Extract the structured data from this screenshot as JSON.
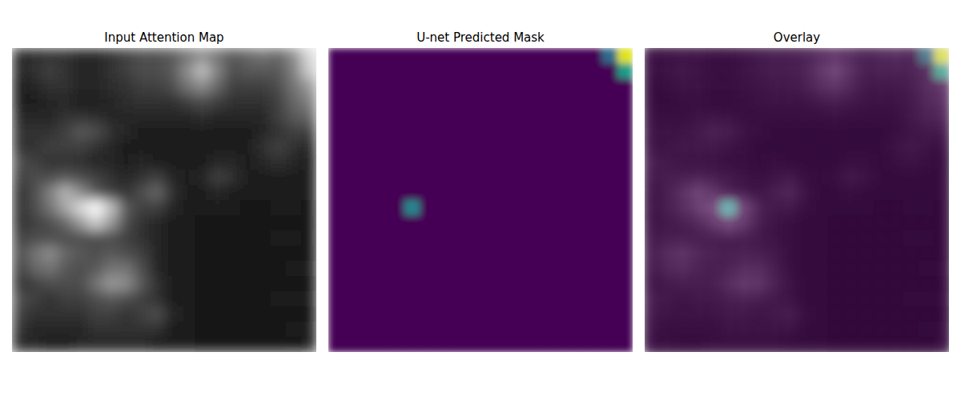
{
  "chart_data": [
    {
      "type": "heatmap",
      "title": "Input Attention Map",
      "color": "gray",
      "color_range": [
        0,
        1
      ],
      "tick_labels": false,
      "cells": [
        [
          0.15,
          0.18,
          0.2,
          0.2,
          0.15,
          0.15,
          0.2,
          0.25,
          0.3,
          0.3,
          0.35,
          0.45,
          0.55,
          0.45,
          0.35,
          0.4,
          0.45,
          0.4,
          0.55,
          0.85
        ],
        [
          0.15,
          0.2,
          0.25,
          0.2,
          0.15,
          0.15,
          0.2,
          0.25,
          0.3,
          0.3,
          0.35,
          0.55,
          0.75,
          0.5,
          0.3,
          0.35,
          0.35,
          0.35,
          0.5,
          0.8
        ],
        [
          0.12,
          0.15,
          0.2,
          0.2,
          0.15,
          0.15,
          0.18,
          0.2,
          0.25,
          0.25,
          0.3,
          0.45,
          0.55,
          0.4,
          0.25,
          0.25,
          0.25,
          0.3,
          0.45,
          0.6
        ],
        [
          0.12,
          0.12,
          0.15,
          0.15,
          0.12,
          0.12,
          0.15,
          0.18,
          0.2,
          0.2,
          0.2,
          0.25,
          0.3,
          0.25,
          0.2,
          0.2,
          0.2,
          0.25,
          0.4,
          0.5
        ],
        [
          0.15,
          0.15,
          0.15,
          0.2,
          0.2,
          0.18,
          0.15,
          0.15,
          0.15,
          0.15,
          0.15,
          0.15,
          0.18,
          0.15,
          0.15,
          0.15,
          0.15,
          0.25,
          0.35,
          0.4
        ],
        [
          0.2,
          0.2,
          0.2,
          0.25,
          0.35,
          0.3,
          0.2,
          0.15,
          0.12,
          0.12,
          0.12,
          0.12,
          0.12,
          0.12,
          0.12,
          0.12,
          0.15,
          0.2,
          0.25,
          0.25
        ],
        [
          0.2,
          0.2,
          0.25,
          0.25,
          0.25,
          0.2,
          0.15,
          0.12,
          0.12,
          0.1,
          0.1,
          0.1,
          0.1,
          0.12,
          0.12,
          0.12,
          0.2,
          0.25,
          0.2,
          0.15
        ],
        [
          0.3,
          0.25,
          0.2,
          0.2,
          0.18,
          0.15,
          0.15,
          0.12,
          0.15,
          0.12,
          0.1,
          0.1,
          0.12,
          0.15,
          0.15,
          0.12,
          0.15,
          0.2,
          0.15,
          0.12
        ],
        [
          0.25,
          0.3,
          0.3,
          0.35,
          0.3,
          0.25,
          0.2,
          0.15,
          0.2,
          0.25,
          0.15,
          0.1,
          0.15,
          0.25,
          0.2,
          0.12,
          0.12,
          0.12,
          0.12,
          0.1
        ],
        [
          0.2,
          0.3,
          0.5,
          0.7,
          0.55,
          0.35,
          0.25,
          0.2,
          0.3,
          0.4,
          0.2,
          0.1,
          0.12,
          0.15,
          0.12,
          0.1,
          0.1,
          0.1,
          0.1,
          0.1
        ],
        [
          0.2,
          0.3,
          0.45,
          0.65,
          0.85,
          1.0,
          0.75,
          0.35,
          0.25,
          0.25,
          0.15,
          0.1,
          0.1,
          0.1,
          0.1,
          0.08,
          0.08,
          0.1,
          0.1,
          0.08
        ],
        [
          0.2,
          0.25,
          0.3,
          0.4,
          0.6,
          0.8,
          0.6,
          0.3,
          0.2,
          0.15,
          0.12,
          0.1,
          0.08,
          0.08,
          0.08,
          0.08,
          0.08,
          0.08,
          0.08,
          0.08
        ],
        [
          0.25,
          0.3,
          0.3,
          0.3,
          0.3,
          0.3,
          0.3,
          0.25,
          0.2,
          0.15,
          0.12,
          0.1,
          0.08,
          0.08,
          0.08,
          0.08,
          0.08,
          0.1,
          0.1,
          0.08
        ],
        [
          0.3,
          0.45,
          0.55,
          0.4,
          0.35,
          0.3,
          0.35,
          0.3,
          0.25,
          0.15,
          0.12,
          0.1,
          0.08,
          0.08,
          0.08,
          0.08,
          0.08,
          0.08,
          0.08,
          0.08
        ],
        [
          0.25,
          0.4,
          0.45,
          0.35,
          0.3,
          0.35,
          0.45,
          0.45,
          0.3,
          0.15,
          0.12,
          0.1,
          0.08,
          0.08,
          0.08,
          0.08,
          0.08,
          0.08,
          0.1,
          0.1
        ],
        [
          0.2,
          0.25,
          0.3,
          0.3,
          0.3,
          0.45,
          0.6,
          0.55,
          0.35,
          0.2,
          0.12,
          0.1,
          0.08,
          0.08,
          0.08,
          0.08,
          0.08,
          0.08,
          0.08,
          0.08
        ],
        [
          0.3,
          0.25,
          0.2,
          0.25,
          0.25,
          0.3,
          0.35,
          0.3,
          0.25,
          0.2,
          0.12,
          0.1,
          0.08,
          0.08,
          0.08,
          0.08,
          0.08,
          0.1,
          0.1,
          0.1
        ],
        [
          0.25,
          0.2,
          0.2,
          0.2,
          0.2,
          0.25,
          0.25,
          0.2,
          0.25,
          0.3,
          0.15,
          0.1,
          0.08,
          0.08,
          0.08,
          0.08,
          0.08,
          0.08,
          0.08,
          0.08
        ],
        [
          0.2,
          0.15,
          0.15,
          0.15,
          0.15,
          0.2,
          0.2,
          0.2,
          0.2,
          0.2,
          0.12,
          0.1,
          0.08,
          0.08,
          0.08,
          0.08,
          0.08,
          0.08,
          0.1,
          0.1
        ],
        [
          0.15,
          0.15,
          0.12,
          0.12,
          0.15,
          0.15,
          0.15,
          0.15,
          0.15,
          0.12,
          0.1,
          0.1,
          0.08,
          0.08,
          0.08,
          0.08,
          0.08,
          0.08,
          0.08,
          0.1
        ]
      ]
    },
    {
      "type": "heatmap",
      "title": "U-net Predicted Mask",
      "color": "viridis",
      "color_range": [
        0,
        1
      ],
      "tick_labels": false,
      "cells": [
        [
          0,
          0,
          0,
          0,
          0,
          0,
          0,
          0,
          0,
          0,
          0,
          0,
          0,
          0,
          0,
          0,
          0,
          0,
          0.35,
          0.95
        ],
        [
          0,
          0,
          0,
          0,
          0,
          0,
          0,
          0,
          0,
          0,
          0,
          0,
          0,
          0,
          0,
          0,
          0,
          0,
          0,
          0.55
        ],
        [
          0,
          0,
          0,
          0,
          0,
          0,
          0,
          0,
          0,
          0,
          0,
          0,
          0,
          0,
          0,
          0,
          0,
          0,
          0,
          0
        ],
        [
          0,
          0,
          0,
          0,
          0,
          0,
          0,
          0,
          0,
          0,
          0,
          0,
          0,
          0,
          0,
          0,
          0,
          0,
          0,
          0
        ],
        [
          0,
          0,
          0,
          0,
          0,
          0,
          0,
          0,
          0,
          0,
          0,
          0,
          0,
          0,
          0,
          0,
          0,
          0,
          0,
          0
        ],
        [
          0,
          0,
          0,
          0,
          0,
          0,
          0,
          0,
          0,
          0,
          0,
          0,
          0,
          0,
          0,
          0,
          0,
          0,
          0,
          0
        ],
        [
          0,
          0,
          0,
          0,
          0,
          0,
          0,
          0,
          0,
          0,
          0,
          0,
          0,
          0,
          0,
          0,
          0,
          0,
          0,
          0
        ],
        [
          0,
          0,
          0,
          0,
          0,
          0,
          0,
          0,
          0,
          0,
          0,
          0,
          0,
          0,
          0,
          0,
          0,
          0,
          0,
          0
        ],
        [
          0,
          0,
          0,
          0,
          0,
          0,
          0,
          0,
          0,
          0,
          0,
          0,
          0,
          0,
          0,
          0,
          0,
          0,
          0,
          0
        ],
        [
          0,
          0,
          0,
          0,
          0,
          0,
          0,
          0,
          0,
          0,
          0,
          0,
          0,
          0,
          0,
          0,
          0,
          0,
          0,
          0
        ],
        [
          0,
          0,
          0,
          0,
          0,
          0.45,
          0,
          0,
          0,
          0,
          0,
          0,
          0,
          0,
          0,
          0,
          0,
          0,
          0,
          0
        ],
        [
          0,
          0,
          0,
          0,
          0,
          0,
          0,
          0,
          0,
          0,
          0,
          0,
          0,
          0,
          0,
          0,
          0,
          0,
          0,
          0
        ],
        [
          0,
          0,
          0,
          0,
          0,
          0,
          0,
          0,
          0,
          0,
          0,
          0,
          0,
          0,
          0,
          0,
          0,
          0,
          0,
          0
        ],
        [
          0,
          0,
          0,
          0,
          0,
          0,
          0,
          0,
          0,
          0,
          0,
          0,
          0,
          0,
          0,
          0,
          0,
          0,
          0,
          0
        ],
        [
          0,
          0,
          0,
          0,
          0,
          0,
          0,
          0,
          0,
          0,
          0,
          0,
          0,
          0,
          0,
          0,
          0,
          0,
          0,
          0
        ],
        [
          0,
          0,
          0,
          0,
          0,
          0,
          0,
          0,
          0,
          0,
          0,
          0,
          0,
          0,
          0,
          0,
          0,
          0,
          0,
          0
        ],
        [
          0,
          0,
          0,
          0,
          0,
          0,
          0,
          0,
          0,
          0,
          0,
          0,
          0,
          0,
          0,
          0,
          0,
          0,
          0,
          0
        ],
        [
          0,
          0,
          0,
          0,
          0,
          0,
          0,
          0,
          0,
          0,
          0,
          0,
          0,
          0,
          0,
          0,
          0,
          0,
          0,
          0
        ],
        [
          0,
          0,
          0,
          0,
          0,
          0,
          0,
          0,
          0,
          0,
          0,
          0,
          0,
          0,
          0,
          0,
          0,
          0,
          0,
          0
        ],
        [
          0,
          0,
          0,
          0,
          0,
          0,
          0,
          0,
          0,
          0,
          0,
          0,
          0,
          0,
          0,
          0,
          0,
          0,
          0,
          0
        ]
      ]
    },
    {
      "type": "overlay",
      "title": "Overlay",
      "tick_labels": false
    }
  ]
}
